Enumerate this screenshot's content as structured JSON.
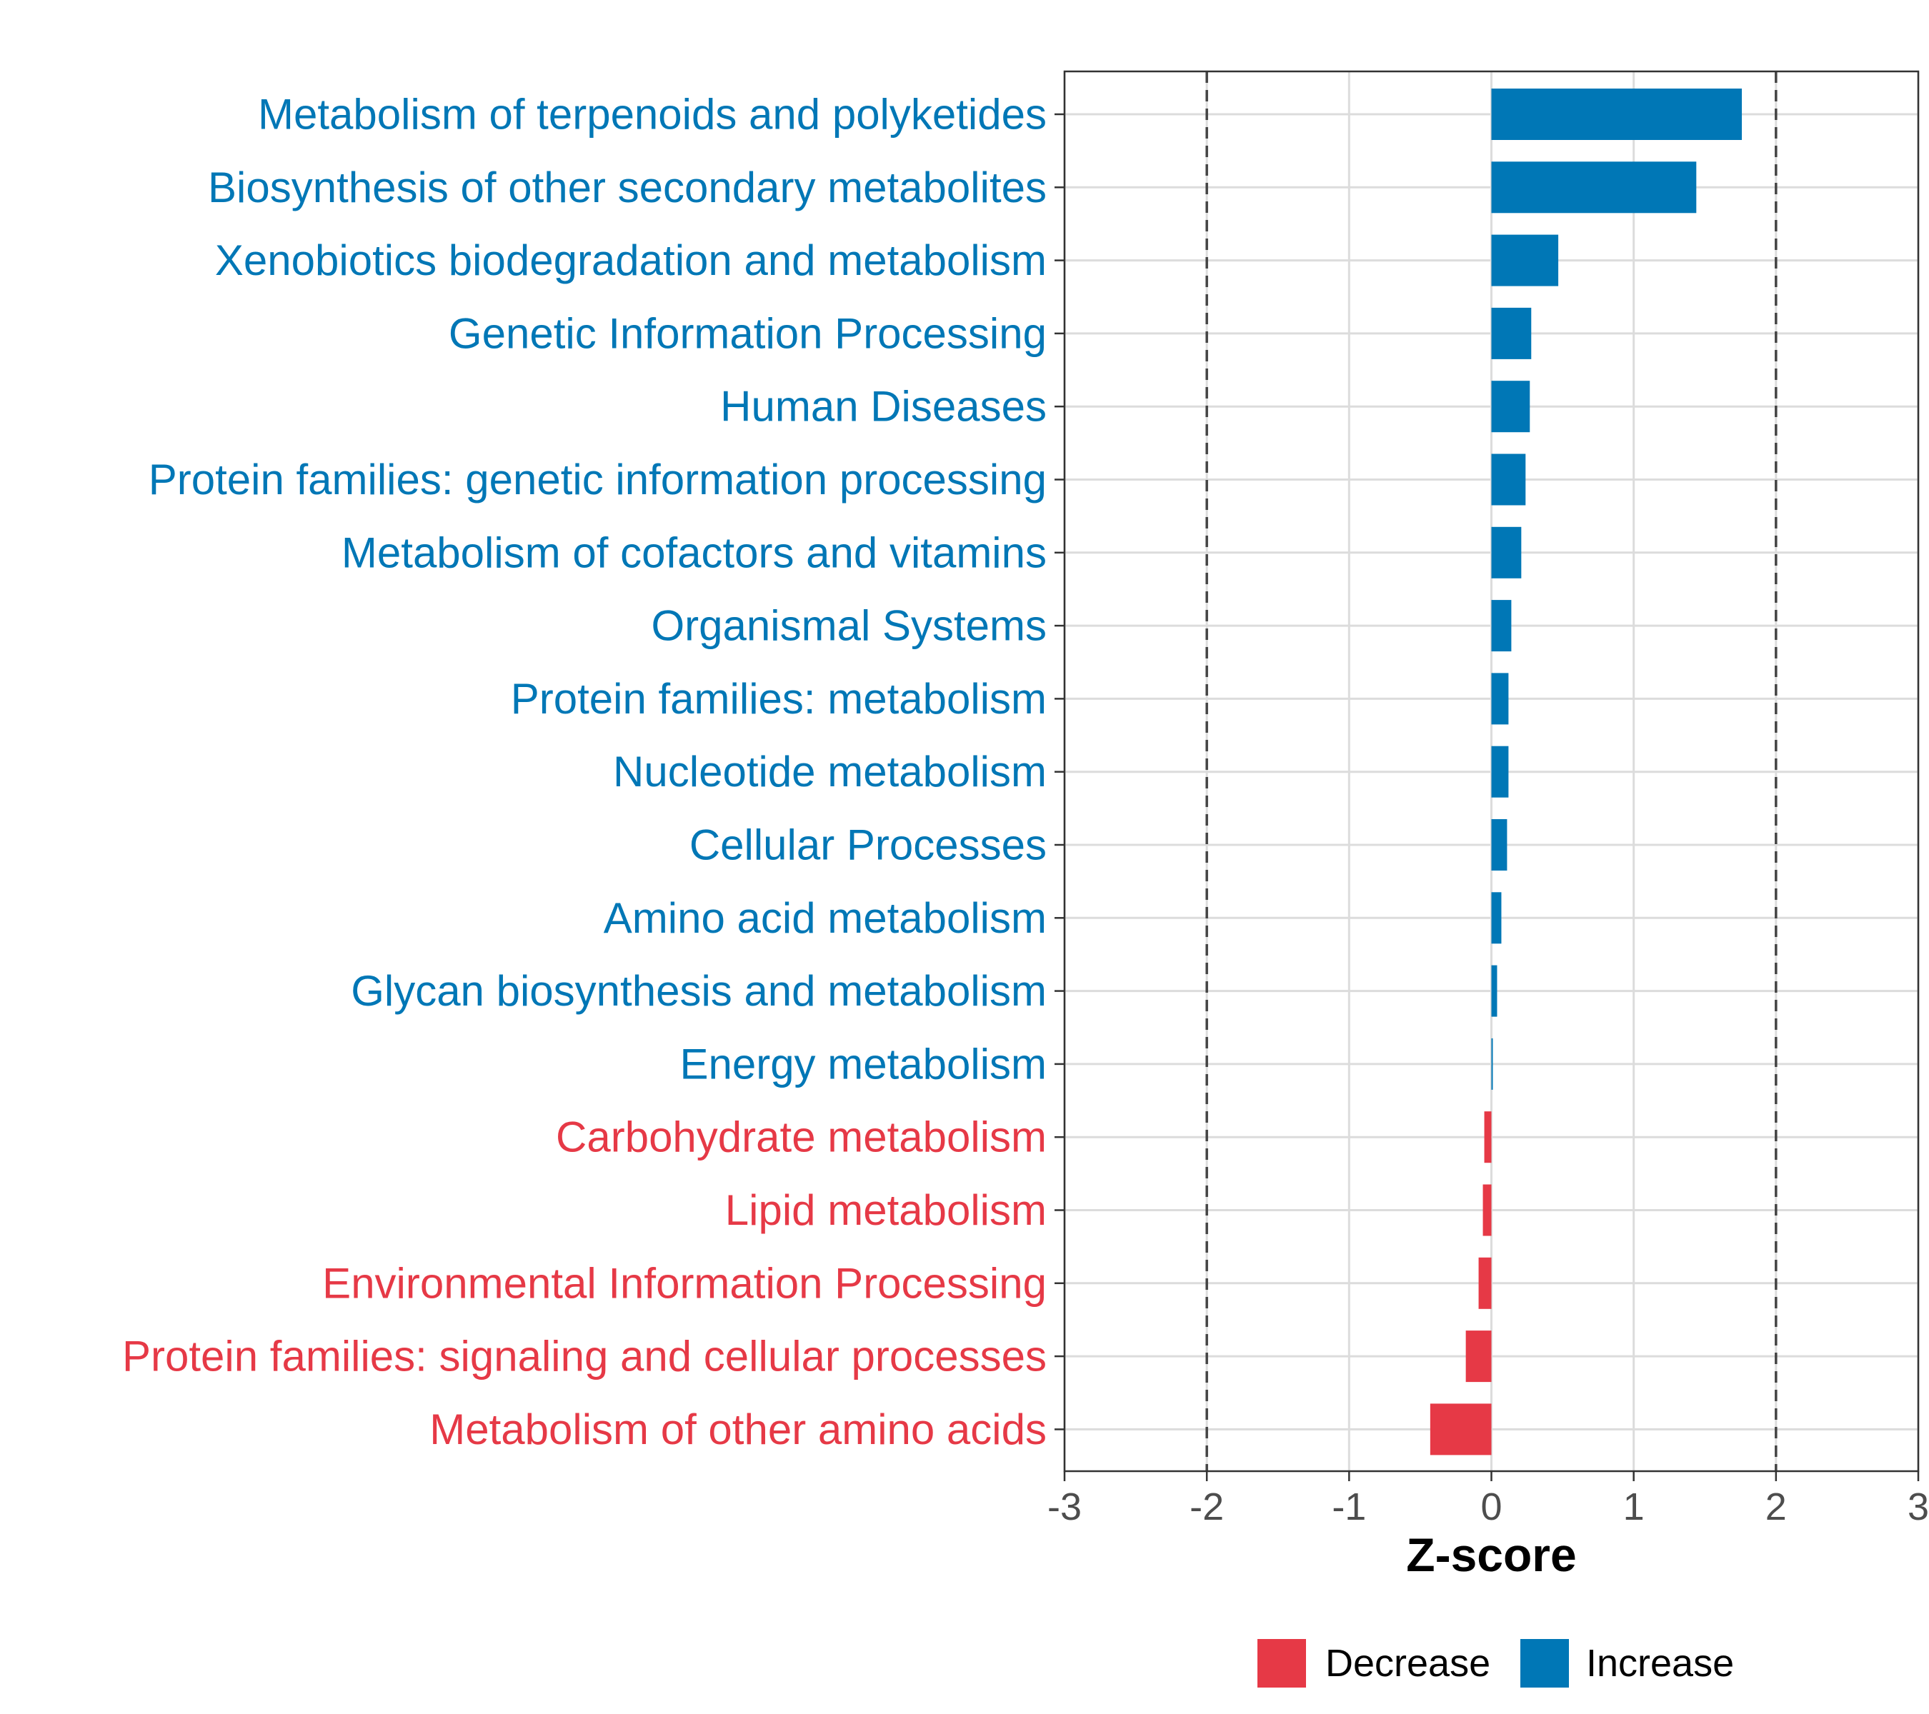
{
  "chart_data": {
    "type": "bar",
    "orientation": "horizontal",
    "xlabel": "Z-score",
    "xlim": [
      -3,
      3
    ],
    "xticks": [
      -3,
      -2,
      -1,
      0,
      1,
      2,
      3
    ],
    "reference_lines": [
      -2,
      2
    ],
    "categories": [
      "Metabolism of terpenoids and polyketides",
      "Biosynthesis of other secondary metabolites",
      "Xenobiotics biodegradation and metabolism",
      "Genetic Information Processing",
      "Human Diseases",
      "Protein families: genetic information processing",
      "Metabolism of cofactors and vitamins",
      "Organismal Systems",
      "Protein families: metabolism",
      "Nucleotide metabolism",
      "Cellular Processes",
      "Amino acid metabolism",
      "Glycan biosynthesis and metabolism",
      "Energy metabolism",
      "Carbohydrate metabolism",
      "Lipid metabolism",
      "Environmental Information Processing",
      "Protein families: signaling and cellular processes",
      "Metabolism of other amino acids"
    ],
    "values": [
      1.76,
      1.44,
      0.47,
      0.28,
      0.27,
      0.24,
      0.21,
      0.14,
      0.12,
      0.12,
      0.11,
      0.07,
      0.04,
      0.01,
      -0.05,
      -0.06,
      -0.09,
      -0.18,
      -0.43
    ],
    "legend": [
      {
        "label": "Decrease",
        "color": "#e63946"
      },
      {
        "label": "Increase",
        "color": "#0077b6"
      }
    ],
    "legend_position": "bottom"
  }
}
